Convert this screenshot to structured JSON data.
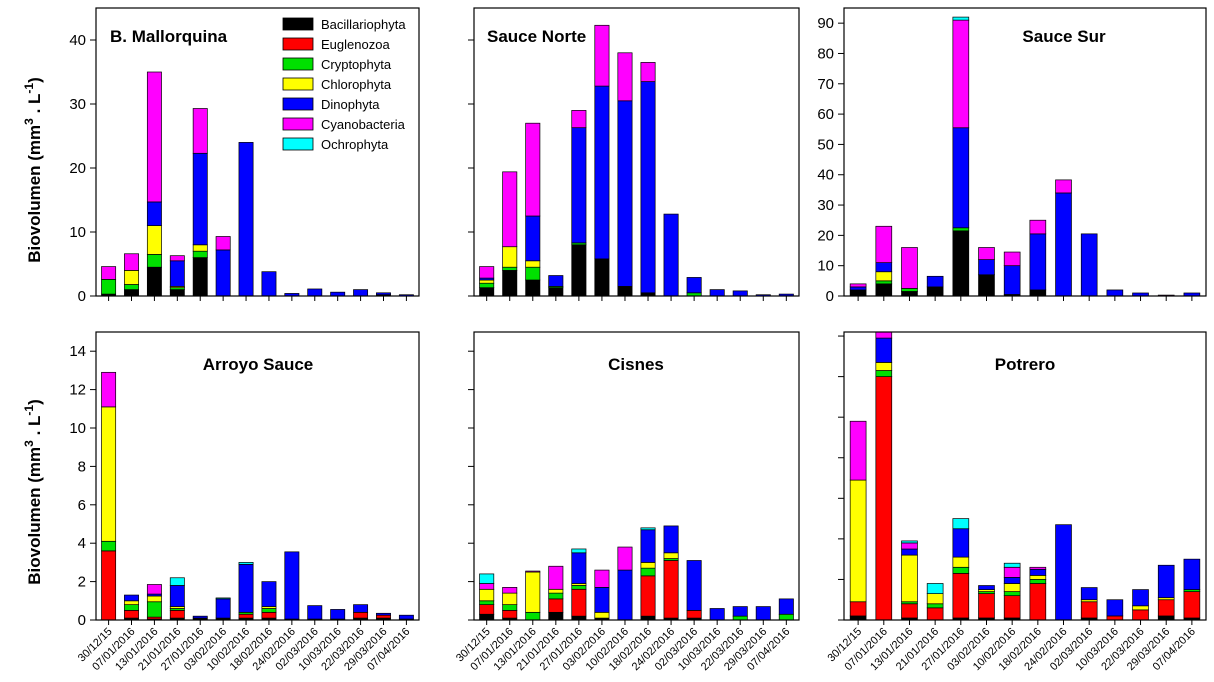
{
  "legend": {
    "series": [
      "Bacillariophyta",
      "Euglenozoa",
      "Cryptophyta",
      "Chlorophyta",
      "Dinophyta",
      "Cyanobacteria",
      "Ochrophyta"
    ],
    "colors": [
      "#000000",
      "#ff0000",
      "#00e000",
      "#ffff00",
      "#0000ff",
      "#ff00ff",
      "#00ffff"
    ]
  },
  "ylabel": {
    "text": "Biovolumen (mm",
    "sup1": "3",
    "mid": " . L",
    "sup2": "-1",
    "end": ")"
  },
  "chart_data": [
    {
      "type": "bar",
      "stacked": true,
      "title": "B. Mallorquina",
      "ylim": [
        0,
        45
      ],
      "yticks": [
        0,
        10,
        20,
        30,
        40
      ],
      "categories": [
        "30/12/15",
        "07/01/2016",
        "13/01/2016",
        "21/01/2016",
        "27/01/2016",
        "03/02/2016",
        "10/02/2016",
        "18/02/2016",
        "24/02/2016",
        "02/03/2016",
        "10/03/2016",
        "22/03/2016",
        "29/03/2016",
        "07/04/2016"
      ],
      "series": [
        {
          "name": "Bacillariophyta",
          "values": [
            0.3,
            1.0,
            4.5,
            1.0,
            6.0,
            0,
            0,
            0,
            0,
            0,
            0,
            0,
            0.2,
            0
          ]
        },
        {
          "name": "Euglenozoa",
          "values": [
            0,
            0,
            0,
            0,
            0,
            0,
            0,
            0,
            0,
            0,
            0,
            0,
            0,
            0
          ]
        },
        {
          "name": "Cryptophyta",
          "values": [
            2.3,
            0.8,
            2.0,
            0.3,
            1.0,
            0,
            0,
            0,
            0,
            0,
            0,
            0,
            0,
            0
          ]
        },
        {
          "name": "Chlorophyta",
          "values": [
            0,
            2.2,
            4.5,
            0.2,
            1.0,
            0,
            0,
            0,
            0,
            0,
            0,
            0,
            0,
            0
          ]
        },
        {
          "name": "Dinophyta",
          "values": [
            0,
            0,
            3.7,
            4.0,
            14.3,
            7.2,
            24.0,
            3.8,
            0.4,
            1.1,
            0.6,
            1.0,
            0.3,
            0.2
          ]
        },
        {
          "name": "Cyanobacteria",
          "values": [
            2.0,
            2.6,
            20.3,
            0.8,
            7.0,
            2.1,
            0,
            0,
            0,
            0,
            0,
            0,
            0,
            0
          ]
        },
        {
          "name": "Ochrophyta",
          "values": [
            0,
            0,
            0,
            0,
            0,
            0,
            0,
            0,
            0,
            0,
            0,
            0,
            0,
            0
          ]
        }
      ]
    },
    {
      "type": "bar",
      "stacked": true,
      "title": "Sauce Norte",
      "ylim": [
        0,
        45
      ],
      "yticks": [
        0,
        10,
        20,
        30,
        40
      ],
      "categories": [
        "30/12/15",
        "07/01/2016",
        "13/01/2016",
        "21/01/2016",
        "27/01/2016",
        "03/02/2016",
        "10/02/2016",
        "18/02/2016",
        "24/02/2016",
        "02/03/2016",
        "10/03/2016",
        "22/03/2016",
        "29/03/2016",
        "07/04/2016"
      ],
      "series": [
        {
          "name": "Bacillariophyta",
          "values": [
            1.3,
            4.0,
            2.5,
            1.3,
            8.0,
            5.8,
            1.5,
            0.5,
            0,
            0,
            0,
            0,
            0,
            0
          ]
        },
        {
          "name": "Euglenozoa",
          "values": [
            0,
            0,
            0,
            0,
            0,
            0,
            0,
            0,
            0,
            0,
            0,
            0,
            0,
            0
          ]
        },
        {
          "name": "Cryptophyta",
          "values": [
            0.7,
            0.5,
            2.0,
            0.2,
            0.3,
            0,
            0,
            0,
            0,
            0.5,
            0,
            0,
            0,
            0
          ]
        },
        {
          "name": "Chlorophyta",
          "values": [
            0.5,
            3.2,
            1.0,
            0,
            0,
            0,
            0,
            0,
            0,
            0,
            0,
            0,
            0,
            0
          ]
        },
        {
          "name": "Dinophyta",
          "values": [
            0.3,
            0,
            7.0,
            1.7,
            18.0,
            27.0,
            29.0,
            33.0,
            12.8,
            2.4,
            1.0,
            0.8,
            0.2,
            0.3
          ]
        },
        {
          "name": "Cyanobacteria",
          "values": [
            1.8,
            11.7,
            14.5,
            0,
            2.7,
            9.5,
            7.5,
            3.0,
            0,
            0,
            0,
            0,
            0,
            0
          ]
        },
        {
          "name": "Ochrophyta",
          "values": [
            0,
            0,
            0,
            0,
            0,
            0,
            0,
            0,
            0,
            0,
            0,
            0,
            0,
            0
          ]
        }
      ]
    },
    {
      "type": "bar",
      "stacked": true,
      "title": "Sauce Sur",
      "ylim": [
        0,
        95
      ],
      "yticks": [
        0,
        10,
        20,
        30,
        40,
        50,
        60,
        70,
        80,
        90
      ],
      "categories": [
        "30/12/15",
        "07/01/2016",
        "13/01/2016",
        "21/01/2016",
        "27/01/2016",
        "03/02/2016",
        "10/02/2016",
        "18/02/2016",
        "24/02/2016",
        "02/03/2016",
        "10/03/2016",
        "22/03/2016",
        "29/03/2016",
        "07/04/2016"
      ],
      "series": [
        {
          "name": "Bacillariophyta",
          "values": [
            2.0,
            4.0,
            1.5,
            3.0,
            21.5,
            7.0,
            0.5,
            2.0,
            0,
            0,
            0,
            0,
            0,
            0
          ]
        },
        {
          "name": "Euglenozoa",
          "values": [
            0,
            0,
            0,
            0,
            0,
            0,
            0,
            0,
            0,
            0,
            0,
            0,
            0,
            0
          ]
        },
        {
          "name": "Cryptophyta",
          "values": [
            0,
            1.0,
            1.0,
            0,
            1.0,
            0,
            0,
            0,
            0,
            0,
            0,
            0,
            0,
            0
          ]
        },
        {
          "name": "Chlorophyta",
          "values": [
            0,
            3.0,
            0,
            0,
            0,
            0,
            0,
            0,
            0,
            0,
            0,
            0,
            0,
            0
          ]
        },
        {
          "name": "Dinophyta",
          "values": [
            1.0,
            3.0,
            0,
            3.5,
            33.0,
            5.0,
            9.5,
            18.5,
            34.0,
            20.5,
            2.0,
            1.0,
            0,
            1.0
          ]
        },
        {
          "name": "Cyanobacteria",
          "values": [
            1.0,
            12.0,
            13.5,
            0,
            35.5,
            4.0,
            4.5,
            4.5,
            4.3,
            0,
            0,
            0,
            0.3,
            0
          ]
        },
        {
          "name": "Ochrophyta",
          "values": [
            0,
            0,
            0,
            0,
            1.0,
            0,
            0,
            0,
            0,
            0,
            0,
            0,
            0,
            0
          ]
        }
      ]
    },
    {
      "type": "bar",
      "stacked": true,
      "title": "Arroyo Sauce",
      "ylim": [
        0,
        15
      ],
      "yticks": [
        0,
        2,
        4,
        6,
        8,
        10,
        12,
        14
      ],
      "categories": [
        "30/12/15",
        "07/01/2016",
        "13/01/2016",
        "21/01/2016",
        "27/01/2016",
        "03/02/2016",
        "10/02/2016",
        "18/02/2016",
        "24/02/2016",
        "02/03/2016",
        "10/03/2016",
        "22/03/2016",
        "29/03/2016",
        "07/04/2016"
      ],
      "series": [
        {
          "name": "Bacillariophyta",
          "values": [
            0,
            0.1,
            0.05,
            0.1,
            0.1,
            0.1,
            0.1,
            0.1,
            0.05,
            0.05,
            0.05,
            0.1,
            0.1,
            0.05
          ]
        },
        {
          "name": "Euglenozoa",
          "values": [
            3.6,
            0.4,
            0.1,
            0.4,
            0,
            0,
            0.2,
            0.3,
            0,
            0,
            0,
            0.3,
            0.15,
            0
          ]
        },
        {
          "name": "Cryptophyta",
          "values": [
            0.5,
            0.3,
            0.8,
            0.1,
            0,
            0,
            0.1,
            0.2,
            0,
            0,
            0,
            0,
            0,
            0
          ]
        },
        {
          "name": "Chlorophyta",
          "values": [
            7.0,
            0.2,
            0.3,
            0.1,
            0,
            0,
            0,
            0.1,
            0,
            0,
            0,
            0,
            0,
            0
          ]
        },
        {
          "name": "Dinophyta",
          "values": [
            0,
            0.3,
            0.1,
            1.1,
            0.1,
            1.0,
            2.5,
            1.3,
            3.5,
            0.7,
            0.5,
            0.4,
            0.1,
            0.2
          ]
        },
        {
          "name": "Cyanobacteria",
          "values": [
            1.8,
            0,
            0.5,
            0,
            0,
            0,
            0,
            0,
            0,
            0,
            0,
            0,
            0,
            0
          ]
        },
        {
          "name": "Ochrophyta",
          "values": [
            0,
            0,
            0,
            0.4,
            0,
            0.05,
            0.1,
            0,
            0,
            0,
            0,
            0,
            0,
            0
          ]
        }
      ]
    },
    {
      "type": "bar",
      "stacked": true,
      "title": "Cisnes",
      "ylim": [
        0,
        15
      ],
      "yticks": [
        0,
        2,
        4,
        6,
        8,
        10,
        12,
        14
      ],
      "categories": [
        "30/12/15",
        "07/01/2016",
        "13/01/2016",
        "21/01/2016",
        "27/01/2016",
        "03/02/2016",
        "10/02/2016",
        "18/02/2016",
        "24/02/2016",
        "02/03/2016",
        "10/03/2016",
        "22/03/2016",
        "29/03/2016",
        "07/04/2016"
      ],
      "series": [
        {
          "name": "Bacillariophyta",
          "values": [
            0.3,
            0.1,
            0,
            0.4,
            0.2,
            0.1,
            0,
            0.2,
            0.1,
            0.1,
            0,
            0,
            0,
            0
          ]
        },
        {
          "name": "Euglenozoa",
          "values": [
            0.5,
            0.4,
            0,
            0.7,
            1.4,
            0,
            0,
            2.1,
            3.0,
            0.4,
            0,
            0,
            0,
            0
          ]
        },
        {
          "name": "Cryptophyta",
          "values": [
            0.2,
            0.3,
            0.4,
            0.3,
            0.2,
            0,
            0,
            0.4,
            0.1,
            0,
            0,
            0.2,
            0,
            0.3
          ]
        },
        {
          "name": "Chlorophyta",
          "values": [
            0.6,
            0.6,
            2.1,
            0.2,
            0.1,
            0.3,
            0,
            0.3,
            0.3,
            0,
            0,
            0,
            0,
            0
          ]
        },
        {
          "name": "Dinophyta",
          "values": [
            0,
            0,
            0,
            0,
            1.6,
            1.3,
            2.6,
            1.7,
            1.4,
            2.6,
            0.6,
            0.5,
            0.7,
            0.8
          ]
        },
        {
          "name": "Cyanobacteria",
          "values": [
            0.3,
            0.3,
            0.05,
            1.2,
            0,
            0.9,
            1.2,
            0,
            0,
            0,
            0,
            0,
            0,
            0
          ]
        },
        {
          "name": "Ochrophyta",
          "values": [
            0.5,
            0,
            0,
            0,
            0.2,
            0,
            0,
            0.1,
            0,
            0,
            0,
            0,
            0,
            0
          ]
        }
      ]
    },
    {
      "type": "bar",
      "stacked": true,
      "title": "Potrero",
      "ylim": [
        0,
        14.2
      ],
      "yticks": [
        0,
        2,
        4,
        6,
        8,
        10,
        12,
        14
      ],
      "categories": [
        "30/12/15",
        "07/01/2016",
        "13/01/2016",
        "21/01/2016",
        "27/01/2016",
        "03/02/2016",
        "10/02/2016",
        "18/02/2016",
        "24/02/2016",
        "02/03/2016",
        "10/03/2016",
        "22/03/2016",
        "29/03/2016",
        "07/04/2016"
      ],
      "series": [
        {
          "name": "Bacillariophyta",
          "values": [
            0.2,
            0,
            0.1,
            0,
            0.1,
            0.1,
            0.1,
            0,
            0,
            0.1,
            0,
            0,
            0.2,
            0.1
          ]
        },
        {
          "name": "Euglenozoa",
          "values": [
            0.7,
            12.0,
            0.7,
            0.6,
            2.2,
            1.2,
            1.1,
            1.8,
            0,
            0.8,
            0.2,
            0.5,
            0.8,
            1.3
          ]
        },
        {
          "name": "Cryptophyta",
          "values": [
            0,
            0.3,
            0.1,
            0.2,
            0.3,
            0.1,
            0.2,
            0.2,
            0,
            0,
            0,
            0,
            0,
            0.1
          ]
        },
        {
          "name": "Chlorophyta",
          "values": [
            6.0,
            0.4,
            2.3,
            0.5,
            0.5,
            0.1,
            0.4,
            0.2,
            0,
            0.1,
            0,
            0.2,
            0.1,
            0
          ]
        },
        {
          "name": "Dinophyta",
          "values": [
            0,
            1.2,
            0.3,
            0,
            1.4,
            0.2,
            0.3,
            0.3,
            4.7,
            0.6,
            0.8,
            0.8,
            1.6,
            1.5
          ]
        },
        {
          "name": "Cyanobacteria",
          "values": [
            2.9,
            0.3,
            0.3,
            0,
            0,
            0,
            0.5,
            0.1,
            0,
            0,
            0,
            0,
            0,
            0
          ]
        },
        {
          "name": "Ochrophyta",
          "values": [
            0,
            0,
            0.1,
            0.5,
            0.5,
            0,
            0.2,
            0,
            0,
            0,
            0,
            0,
            0,
            0
          ]
        }
      ]
    }
  ]
}
